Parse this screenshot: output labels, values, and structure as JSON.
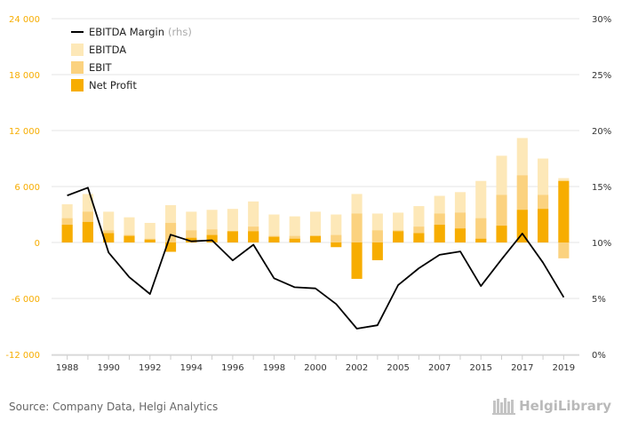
{
  "chart_data": {
    "type": "bar+line",
    "categories": [
      "1988",
      "1989",
      "1990",
      "1991",
      "1992",
      "1993",
      "1994",
      "1995",
      "1996",
      "1997",
      "1998",
      "1999",
      "2000",
      "2001",
      "2002",
      "2003",
      "2005",
      "2006",
      "2007",
      "2014",
      "2015",
      "2016",
      "2017",
      "2018",
      "2019"
    ],
    "x_tick_labels": [
      "1988",
      "1990",
      "1992",
      "1994",
      "1996",
      "1998",
      "2000",
      "2002",
      "2005",
      "2007",
      "2015",
      "2017",
      "2019"
    ],
    "series": [
      {
        "name": "EBITDA",
        "axis": "left",
        "color": "#fde8b8",
        "values": [
          4100,
          5200,
          3300,
          2700,
          2100,
          4000,
          3300,
          3500,
          3600,
          4400,
          3000,
          2800,
          3300,
          3000,
          5200,
          3100,
          3200,
          3900,
          5000,
          5400,
          6600,
          9300,
          11200,
          9000,
          6900
        ]
      },
      {
        "name": "EBIT",
        "axis": "left",
        "color": "#fbd27f",
        "values": [
          2600,
          3300,
          1300,
          800,
          400,
          2100,
          1300,
          1400,
          1200,
          1700,
          700,
          700,
          700,
          800,
          3100,
          1300,
          1300,
          1700,
          3100,
          3200,
          2600,
          5100,
          7200,
          5100,
          -1700
        ]
      },
      {
        "name": "Net Profit",
        "axis": "left",
        "color": "#f7ad00",
        "values": [
          1900,
          2200,
          1000,
          700,
          300,
          -1000,
          500,
          800,
          1200,
          1200,
          600,
          400,
          700,
          -500,
          -3900,
          -1900,
          1200,
          1000,
          1900,
          1500,
          400,
          1800,
          3500,
          3600,
          6600
        ]
      },
      {
        "name": "EBITDA Margin",
        "axis": "right",
        "color": "#000000",
        "values": [
          14.2,
          14.9,
          9.1,
          6.9,
          5.4,
          10.7,
          10.1,
          10.2,
          8.4,
          9.8,
          6.8,
          6.0,
          5.9,
          4.5,
          2.3,
          2.6,
          6.2,
          7.7,
          8.9,
          9.2,
          6.1,
          8.5,
          10.8,
          8.2,
          5.1
        ]
      }
    ],
    "legend": {
      "placement": "top-left",
      "items": [
        {
          "label": "EBITDA Margin",
          "suffix": "(rhs)",
          "kind": "line",
          "color": "#000000"
        },
        {
          "label": "EBITDA",
          "kind": "box",
          "color": "#fde8b8"
        },
        {
          "label": "EBIT",
          "kind": "box",
          "color": "#fbd27f"
        },
        {
          "label": "Net Profit",
          "kind": "box",
          "color": "#f7ad00"
        }
      ]
    },
    "y_left": {
      "min": -12000,
      "max": 24000,
      "ticks": [
        -12000,
        -6000,
        0,
        6000,
        12000,
        18000,
        24000
      ],
      "tick_labels": [
        "-12 000",
        "-6 000",
        "0",
        "6 000",
        "12 000",
        "18 000",
        "24 000"
      ],
      "color": "#f7ad00"
    },
    "y_right": {
      "min": 0,
      "max": 30,
      "ticks": [
        0,
        5,
        10,
        15,
        20,
        25,
        30
      ],
      "tick_labels": [
        "0%",
        "5%",
        "10%",
        "15%",
        "20%",
        "25%",
        "30%"
      ],
      "color": "#000000"
    },
    "grid": true
  },
  "footer": {
    "source": "Source: Company Data, Helgi Analytics",
    "logo_text": "HelgiLibrary"
  }
}
